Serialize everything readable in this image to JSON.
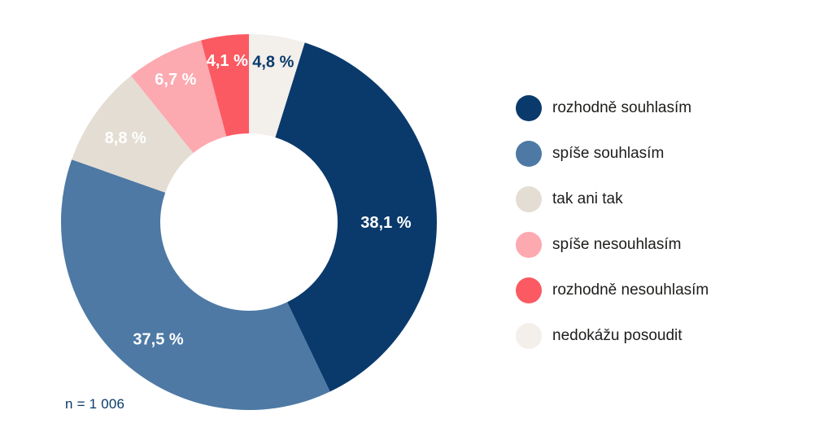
{
  "chart_data": {
    "type": "pie",
    "subtype": "donut",
    "title": "",
    "legend_position": "right",
    "start_angle_deg": 17.28,
    "sample_note": "n = 1 006",
    "series": [
      {
        "label": "rozhodně souhlasím",
        "value": 38.1,
        "display": "38,1 %",
        "color": "#0a3a6b",
        "label_color": "#ffffff"
      },
      {
        "label": "spíše souhlasím",
        "value": 37.5,
        "display": "37,5 %",
        "color": "#4d79a4",
        "label_color": "#ffffff"
      },
      {
        "label": "tak ani tak",
        "value": 8.8,
        "display": "8,8 %",
        "color": "#e4ddd3",
        "label_color": "#ffffff"
      },
      {
        "label": "spíše nesouhlasím",
        "value": 6.7,
        "display": "6,7 %",
        "color": "#fca9b0",
        "label_color": "#ffffff"
      },
      {
        "label": "rozhodně nesouhlasím",
        "value": 4.1,
        "display": "4,1 %",
        "color": "#fb5a62",
        "label_color": "#ffffff"
      },
      {
        "label": "nedokážu posoudit",
        "value": 4.8,
        "display": "4,8 %",
        "color": "#f3efeb",
        "label_color": "#0a3a6b"
      }
    ]
  }
}
